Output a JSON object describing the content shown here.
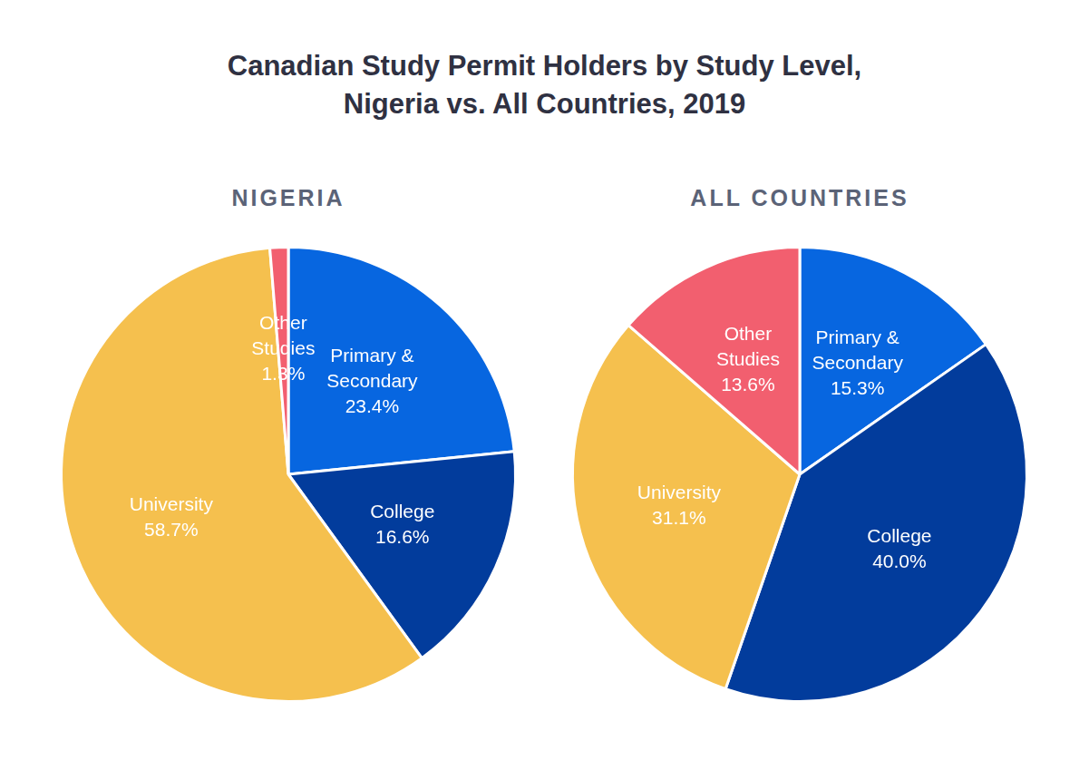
{
  "title": "Canadian Study Permit Holders by Study Level, Nigeria vs. All Countries, 2019",
  "chart_data": [
    {
      "type": "pie",
      "title": "NIGERIA",
      "categories": [
        "Primary & Secondary",
        "College",
        "University",
        "Other Studies"
      ],
      "values": [
        23.4,
        16.6,
        58.7,
        1.3
      ],
      "value_labels": [
        "23.4%",
        "16.6%",
        "58.7%",
        "1.3%"
      ],
      "colors": [
        "#0766e0",
        "#023c9c",
        "#f5c04e",
        "#f25f6f"
      ],
      "data_labels": true
    },
    {
      "type": "pie",
      "title": "ALL COUNTRIES",
      "categories": [
        "Primary & Secondary",
        "College",
        "University",
        "Other Studies"
      ],
      "values": [
        15.3,
        40.0,
        31.1,
        13.6
      ],
      "value_labels": [
        "15.3%",
        "40.0%",
        "31.1%",
        "13.6%"
      ],
      "colors": [
        "#0766e0",
        "#023c9c",
        "#f5c04e",
        "#f25f6f"
      ],
      "data_labels": true
    }
  ]
}
